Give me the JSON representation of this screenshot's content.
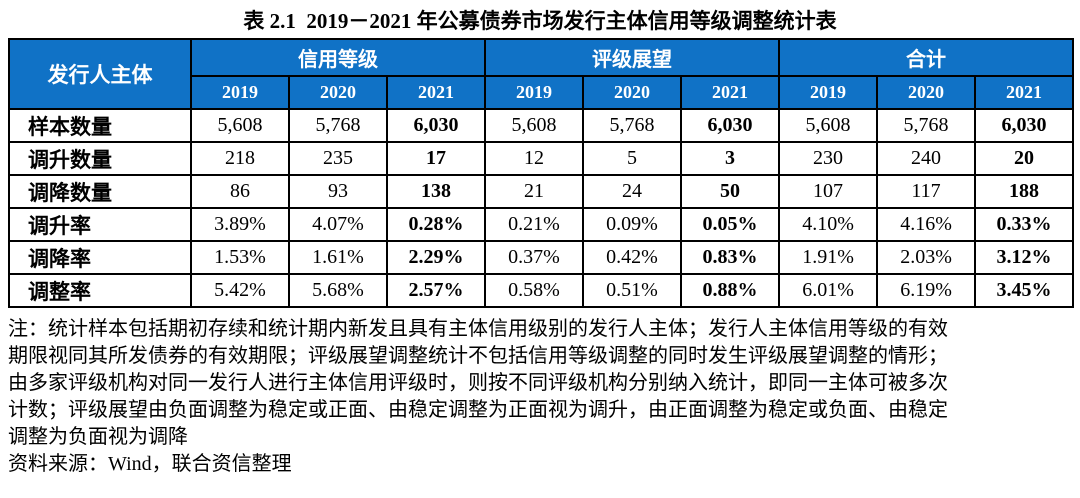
{
  "title": "表 2.1  2019－2021 年公募债券市场发行主体信用等级调整统计表",
  "colors": {
    "header_bg": "#1072C6",
    "header_text": "#FFFFFF",
    "border": "#000000",
    "body_text": "#000000"
  },
  "table": {
    "corner_header": "发行人主体",
    "groups": [
      {
        "label": "信用等级",
        "years": [
          "2019",
          "2020",
          "2021"
        ]
      },
      {
        "label": "评级展望",
        "years": [
          "2019",
          "2020",
          "2021"
        ]
      },
      {
        "label": "合计",
        "years": [
          "2019",
          "2020",
          "2021"
        ]
      }
    ],
    "rows": [
      {
        "label": "样本数量",
        "values": [
          "5,608",
          "5,768",
          "6,030",
          "5,608",
          "5,768",
          "6,030",
          "5,608",
          "5,768",
          "6,030"
        ]
      },
      {
        "label": "调升数量",
        "values": [
          "218",
          "235",
          "17",
          "12",
          "5",
          "3",
          "230",
          "240",
          "20"
        ]
      },
      {
        "label": "调降数量",
        "values": [
          "86",
          "93",
          "138",
          "21",
          "24",
          "50",
          "107",
          "117",
          "188"
        ]
      },
      {
        "label": "调升率",
        "values": [
          "3.89%",
          "4.07%",
          "0.28%",
          "0.21%",
          "0.09%",
          "0.05%",
          "4.10%",
          "4.16%",
          "0.33%"
        ]
      },
      {
        "label": "调降率",
        "values": [
          "1.53%",
          "1.61%",
          "2.29%",
          "0.37%",
          "0.42%",
          "0.83%",
          "1.91%",
          "2.03%",
          "3.12%"
        ]
      },
      {
        "label": "调整率",
        "values": [
          "5.42%",
          "5.68%",
          "2.57%",
          "0.58%",
          "0.51%",
          "0.88%",
          "6.01%",
          "6.19%",
          "3.45%"
        ]
      }
    ]
  },
  "notes": {
    "lines": [
      "注：统计样本包括期初存续和统计期内新发且具有主体信用级别的发行人主体；发行人主体信用等级的有效",
      "期限视同其所发债券的有效期限；评级展望调整统计不包括信用等级调整的同时发生评级展望调整的情形；",
      "由多家评级机构对同一发行人进行主体信用评级时，则按不同评级机构分别纳入统计，即同一主体可被多次",
      "计数；评级展望由负面调整为稳定或正面、由稳定调整为正面视为调升，由正面调整为稳定或负面、由稳定",
      "调整为负面视为调降"
    ],
    "source": "资料来源：Wind，联合资信整理"
  }
}
